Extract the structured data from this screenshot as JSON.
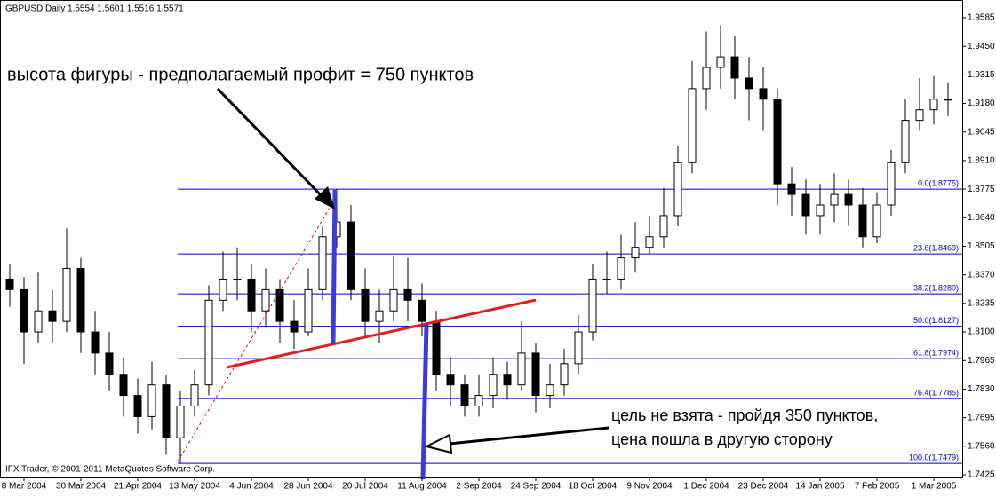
{
  "chart_data": {
    "type": "candlestick",
    "title": "GBPUSD,Daily  1.5554 1.5601 1.5516 1.5571",
    "footer": "IFX Trader, © 2001-2011 MetaQuotes Software Corp.",
    "annotations": [
      "высота фигуры - предполагаемый профит = 750 пунктов",
      "цель не взята - пройдя 350 пунктов,",
      "цена пошла в другую сторону"
    ],
    "categories": [
      null,
      "8 Mar 2004",
      null,
      null,
      null,
      "30 Mar 2004",
      null,
      null,
      null,
      "21 Apr 2004",
      null,
      null,
      null,
      "13 May 2004",
      null,
      null,
      null,
      "4 Jun 2004",
      null,
      null,
      null,
      "28 Jun 2004",
      null,
      null,
      null,
      "20 Jul 2004",
      null,
      null,
      null,
      "11 Aug 2004",
      null,
      null,
      null,
      "2 Sep 2004",
      null,
      null,
      null,
      "24 Sep 2004",
      null,
      null,
      null,
      "18 Oct 2004",
      null,
      null,
      null,
      "9 Nov 2004",
      null,
      null,
      null,
      "1 Dec 2004",
      null,
      null,
      null,
      "23 Dec 2004",
      null,
      null,
      null,
      "14 Jan 2005",
      null,
      null,
      null,
      "7 Feb 2005",
      null,
      null,
      null,
      "1 Mar 2005",
      null
    ],
    "open": [
      1.835,
      1.83,
      1.81,
      1.82,
      1.815,
      1.84,
      1.81,
      1.8,
      1.79,
      1.78,
      1.77,
      1.785,
      1.76,
      1.775,
      1.785,
      1.825,
      1.835,
      1.835,
      1.82,
      1.83,
      1.815,
      1.81,
      1.83,
      1.855,
      1.862,
      1.83,
      1.815,
      1.82,
      1.83,
      1.825,
      1.815,
      1.79,
      1.785,
      1.775,
      1.78,
      1.79,
      1.785,
      1.8,
      1.78,
      1.785,
      1.795,
      1.81,
      1.835,
      1.835,
      1.845,
      1.85,
      1.855,
      1.865,
      1.89,
      1.925,
      1.935,
      1.94,
      1.93,
      1.925,
      1.92,
      1.88,
      1.875,
      1.865,
      1.87,
      1.875,
      1.87,
      1.855,
      1.87,
      1.89,
      1.91,
      1.915,
      1.92
    ],
    "high": [
      1.842,
      1.836,
      1.838,
      1.83,
      1.859,
      1.845,
      1.82,
      1.81,
      1.798,
      1.788,
      1.796,
      1.79,
      1.782,
      1.792,
      1.832,
      1.848,
      1.85,
      1.842,
      1.84,
      1.835,
      1.825,
      1.84,
      1.86,
      1.8775,
      1.87,
      1.84,
      1.83,
      1.846,
      1.845,
      1.833,
      1.82,
      1.798,
      1.79,
      1.79,
      1.798,
      1.796,
      1.815,
      1.805,
      1.795,
      1.802,
      1.818,
      1.842,
      1.848,
      1.856,
      1.862,
      1.865,
      1.878,
      1.898,
      1.938,
      1.952,
      1.955,
      1.95,
      1.94,
      1.935,
      1.925,
      1.888,
      1.882,
      1.88,
      1.885,
      1.882,
      1.878,
      1.876,
      1.896,
      1.92,
      1.93,
      1.931,
      1.928
    ],
    "low": [
      1.822,
      1.795,
      1.805,
      1.805,
      1.81,
      1.8,
      1.79,
      1.782,
      1.77,
      1.762,
      1.764,
      1.752,
      1.748,
      1.77,
      1.78,
      1.82,
      1.825,
      1.81,
      1.812,
      1.805,
      1.802,
      1.808,
      1.825,
      1.85,
      1.825,
      1.808,
      1.805,
      1.815,
      1.815,
      1.808,
      1.782,
      1.775,
      1.77,
      1.77,
      1.774,
      1.778,
      1.782,
      1.772,
      1.774,
      1.78,
      1.79,
      1.806,
      1.828,
      1.83,
      1.838,
      1.847,
      1.85,
      1.86,
      1.885,
      1.915,
      1.925,
      1.92,
      1.91,
      1.905,
      1.87,
      1.865,
      1.856,
      1.856,
      1.862,
      1.86,
      1.85,
      1.852,
      1.865,
      1.885,
      1.905,
      1.908,
      1.912
    ],
    "close": [
      1.83,
      1.81,
      1.82,
      1.815,
      1.84,
      1.81,
      1.8,
      1.79,
      1.78,
      1.77,
      1.785,
      1.76,
      1.775,
      1.785,
      1.825,
      1.835,
      1.835,
      1.82,
      1.83,
      1.815,
      1.81,
      1.83,
      1.855,
      1.862,
      1.83,
      1.815,
      1.82,
      1.83,
      1.825,
      1.815,
      1.79,
      1.785,
      1.775,
      1.78,
      1.79,
      1.785,
      1.8,
      1.78,
      1.785,
      1.795,
      1.81,
      1.835,
      1.835,
      1.845,
      1.85,
      1.855,
      1.865,
      1.89,
      1.925,
      1.935,
      1.94,
      1.93,
      1.925,
      1.92,
      1.88,
      1.875,
      1.865,
      1.87,
      1.875,
      1.87,
      1.855,
      1.87,
      1.89,
      1.91,
      1.915,
      1.92,
      1.92
    ],
    "ylim": [
      1.7425,
      1.9585
    ],
    "yticks": [
      1.9585,
      {
        "value": 1.945,
        "label": "1.9450"
      },
      1.9315,
      {
        "value": 1.918,
        "label": "1.9180"
      },
      1.9045,
      {
        "value": 1.891,
        "label": "1.8910"
      },
      1.8775,
      {
        "value": 1.864,
        "label": "1.8640"
      },
      1.8505,
      {
        "value": 1.837,
        "label": "1.8370"
      },
      1.8235,
      {
        "value": 1.81,
        "label": "1.8100"
      },
      1.7965,
      {
        "value": 1.783,
        "label": "1.7830"
      },
      1.7695,
      {
        "value": 1.756,
        "label": "1.7560"
      },
      1.7425
    ],
    "levels": [
      {
        "value": 1.8775,
        "label": "0.0(1.8775)"
      },
      {
        "value": 1.8469,
        "label": "23.6(1.8469)"
      },
      {
        "value": 1.828,
        "label": "38.2(1.8280)"
      },
      {
        "value": 1.8127,
        "label": "50.0(1.8127)"
      },
      {
        "value": 1.7974,
        "label": "61.8(1.7974)"
      },
      {
        "value": 1.7785,
        "label": "76.4(1.7785)"
      },
      {
        "value": 1.7479,
        "label": "100.0(1.7479)"
      }
    ],
    "level_color": "#0000cc"
  }
}
